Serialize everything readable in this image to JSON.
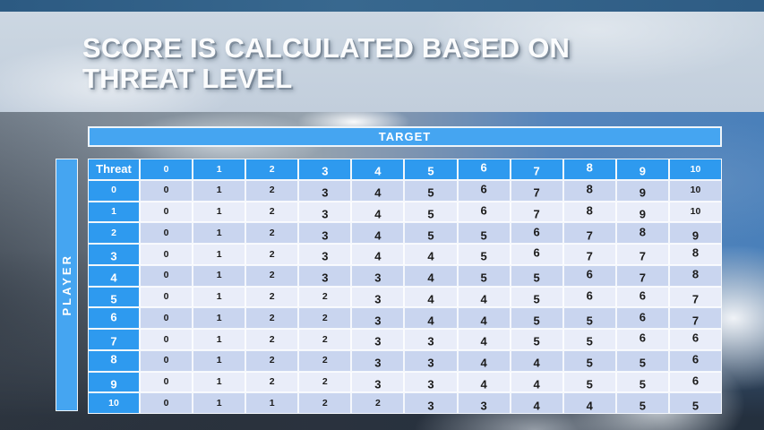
{
  "slide": {
    "title_line1": "SCORE IS CALCULATED BASED ON",
    "title_line2": "THREAT LEVEL"
  },
  "target_label": "TARGET",
  "player_label": "PLAYER",
  "table": {
    "corner_label": "Threat",
    "col_headers": [
      "0",
      "1",
      "2",
      "3",
      "4",
      "5",
      "6",
      "7",
      "8",
      "9",
      "10"
    ],
    "rows": [
      {
        "header": "0",
        "values": [
          0,
          1,
          2,
          3,
          4,
          5,
          6,
          7,
          8,
          9,
          10
        ]
      },
      {
        "header": "1",
        "values": [
          0,
          1,
          2,
          3,
          4,
          5,
          6,
          7,
          8,
          9,
          10
        ]
      },
      {
        "header": "2",
        "values": [
          0,
          1,
          2,
          3,
          4,
          5,
          5,
          6,
          7,
          8,
          9
        ]
      },
      {
        "header": "3",
        "values": [
          0,
          1,
          2,
          3,
          4,
          4,
          5,
          6,
          7,
          7,
          8
        ]
      },
      {
        "header": "4",
        "values": [
          0,
          1,
          2,
          3,
          3,
          4,
          5,
          5,
          6,
          7,
          8
        ]
      },
      {
        "header": "5",
        "values": [
          0,
          1,
          2,
          2,
          3,
          4,
          4,
          5,
          6,
          6,
          7
        ]
      },
      {
        "header": "6",
        "values": [
          0,
          1,
          2,
          2,
          3,
          4,
          4,
          5,
          5,
          6,
          7
        ]
      },
      {
        "header": "7",
        "values": [
          0,
          1,
          2,
          2,
          3,
          3,
          4,
          5,
          5,
          6,
          6
        ]
      },
      {
        "header": "8",
        "values": [
          0,
          1,
          2,
          2,
          3,
          3,
          4,
          4,
          5,
          5,
          6
        ]
      },
      {
        "header": "9",
        "values": [
          0,
          1,
          2,
          2,
          3,
          3,
          4,
          4,
          5,
          5,
          6
        ]
      },
      {
        "header": "10",
        "values": [
          0,
          1,
          1,
          2,
          2,
          3,
          3,
          4,
          4,
          5,
          5
        ]
      }
    ]
  },
  "colors": {
    "accent_blue": "#2E9AEF",
    "band_blue": "#45A5F1",
    "row_even": "#C9D5EF",
    "row_odd": "#E9EDF9",
    "cell_text": "#1B1B1B"
  }
}
